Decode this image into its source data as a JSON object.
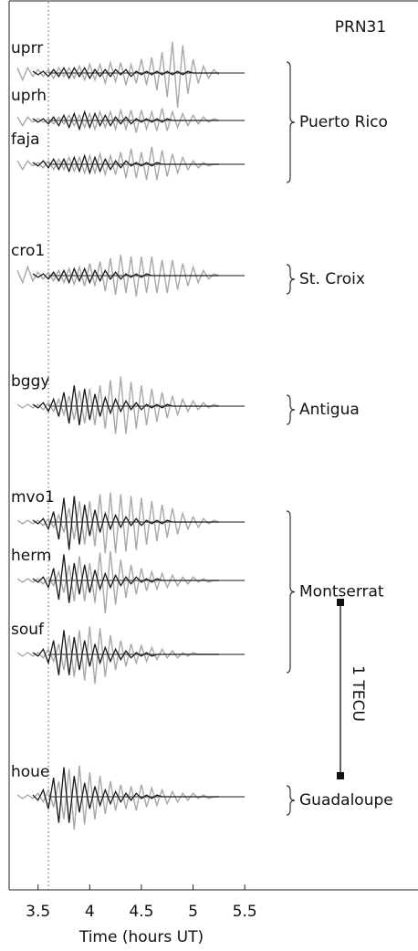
{
  "chart_data": {
    "type": "waveform",
    "title": "PRN31",
    "x_label": "Time (hours UT)",
    "xlim": [
      3.22,
      7.15
    ],
    "xticks": [
      3.5,
      4,
      4.5,
      5,
      5.5
    ],
    "reference_x": 3.6,
    "scale_bar": {
      "value": 1,
      "label": "1 TECU"
    },
    "x": [
      3.3,
      3.35,
      3.4,
      3.45,
      3.5,
      3.55,
      3.6,
      3.65,
      3.7,
      3.75,
      3.8,
      3.85,
      3.9,
      3.95,
      4,
      4.05,
      4.1,
      4.15,
      4.2,
      4.25,
      4.3,
      4.35,
      4.4,
      4.45,
      4.5,
      4.55,
      4.6,
      4.65,
      4.7,
      4.75,
      4.8,
      4.85,
      4.9,
      4.95,
      5,
      5.05,
      5.1,
      5.15,
      5.2,
      5.25
    ],
    "series": [
      {
        "name": "uprr",
        "group": "Puerto Rico",
        "traces": [
          {
            "color": "#a8a8a8",
            "values": [
              0.03,
              -0.04,
              0.03,
              -0.02,
              0.02,
              -0.02,
              0.02,
              -0.03,
              0.03,
              -0.02,
              0.03,
              -0.03,
              0.04,
              -0.04,
              0.05,
              -0.04,
              0.05,
              -0.06,
              0.06,
              -0.05,
              0.06,
              -0.07,
              0.05,
              -0.06,
              0.08,
              -0.07,
              0.09,
              -0.1,
              0.12,
              -0.14,
              0.18,
              -0.2,
              0.16,
              -0.12,
              0.08,
              -0.06,
              0.04,
              -0.03,
              0.02,
              -0.01
            ]
          },
          {
            "color": "#1a1a1a",
            "values": [
              null,
              null,
              null,
              0.01,
              -0.01,
              0.01,
              -0.02,
              0.02,
              -0.02,
              0.03,
              -0.03,
              0.03,
              -0.02,
              0.03,
              -0.03,
              0.02,
              -0.02,
              0.02,
              -0.02,
              0.02,
              -0.01,
              0.02,
              -0.02,
              0.01,
              -0.01,
              0.01,
              -0.01,
              0.01,
              -0.01,
              0.01,
              -0.01,
              0.01,
              -0.01,
              0.01,
              0,
              0,
              0,
              0,
              0,
              0
            ]
          }
        ]
      },
      {
        "name": "uprh",
        "group": "Puerto Rico",
        "traces": [
          {
            "color": "#a8a8a8",
            "values": [
              0.02,
              -0.03,
              0.02,
              -0.01,
              0.01,
              -0.01,
              0.01,
              -0.02,
              0.02,
              -0.02,
              0.03,
              -0.03,
              0.03,
              -0.04,
              0.04,
              -0.05,
              0.05,
              -0.04,
              0.05,
              -0.05,
              0.06,
              -0.05,
              0.06,
              -0.07,
              0.06,
              -0.05,
              0.05,
              -0.06,
              0.07,
              -0.06,
              0.05,
              -0.04,
              0.04,
              -0.03,
              0.03,
              -0.02,
              0.02,
              -0.01,
              0.01,
              0
            ]
          },
          {
            "color": "#1a1a1a",
            "values": [
              null,
              null,
              null,
              0.01,
              -0.01,
              0.01,
              -0.02,
              0.02,
              -0.03,
              0.03,
              -0.04,
              0.04,
              -0.05,
              0.05,
              -0.04,
              0.04,
              -0.03,
              0.03,
              -0.03,
              0.02,
              -0.02,
              0.02,
              -0.02,
              0.01,
              -0.01,
              0.01,
              -0.01,
              0.01,
              -0.01,
              0.01,
              0,
              0,
              0,
              0,
              0,
              0,
              0,
              0,
              0,
              0
            ]
          }
        ]
      },
      {
        "name": "faja",
        "group": "Puerto Rico",
        "traces": [
          {
            "color": "#a8a8a8",
            "values": [
              0.02,
              -0.03,
              0.02,
              -0.01,
              0.01,
              -0.02,
              0.02,
              -0.03,
              0.03,
              -0.03,
              0.04,
              -0.04,
              0.04,
              -0.05,
              0.05,
              -0.05,
              0.06,
              -0.06,
              0.05,
              -0.06,
              0.07,
              -0.08,
              0.09,
              -0.08,
              0.07,
              -0.09,
              0.1,
              -0.09,
              0.08,
              -0.07,
              0.06,
              -0.05,
              0.04,
              -0.03,
              0.02,
              -0.02,
              0.01,
              -0.01,
              0,
              0
            ]
          },
          {
            "color": "#1a1a1a",
            "values": [
              null,
              null,
              null,
              0.01,
              -0.01,
              0.02,
              -0.02,
              0.03,
              -0.03,
              0.03,
              -0.04,
              0.04,
              -0.04,
              0.05,
              -0.05,
              0.04,
              -0.04,
              0.03,
              -0.03,
              0.02,
              -0.02,
              0.02,
              -0.01,
              0.01,
              -0.01,
              0.01,
              -0.01,
              0.01,
              0,
              0,
              0,
              0,
              0,
              0,
              0,
              0,
              0,
              0,
              0,
              0
            ]
          }
        ]
      },
      {
        "name": "cro1",
        "group": "St. Croix",
        "traces": [
          {
            "color": "#a8a8a8",
            "values": [
              0.03,
              -0.04,
              0.05,
              -0.03,
              0.02,
              -0.02,
              0.02,
              -0.03,
              0.03,
              -0.04,
              0.04,
              -0.05,
              0.05,
              -0.06,
              0.07,
              -0.06,
              0.08,
              -0.09,
              0.1,
              -0.11,
              0.12,
              -0.1,
              0.11,
              -0.12,
              0.11,
              -0.1,
              0.11,
              -0.1,
              0.09,
              -0.1,
              0.09,
              -0.08,
              0.07,
              -0.06,
              0.05,
              -0.04,
              0.03,
              -0.02,
              0.01,
              0
            ]
          },
          {
            "color": "#1a1a1a",
            "values": [
              null,
              null,
              null,
              0.01,
              -0.01,
              0.01,
              -0.02,
              0.02,
              -0.03,
              0.03,
              -0.04,
              0.04,
              -0.03,
              0.04,
              -0.04,
              0.03,
              -0.03,
              0.03,
              -0.02,
              0.02,
              -0.02,
              0.01,
              -0.01,
              0.01,
              -0.01,
              0.01,
              0,
              0,
              0,
              0,
              0,
              0,
              0,
              0,
              0,
              0,
              0,
              0,
              0,
              0
            ]
          }
        ]
      },
      {
        "name": "bggy",
        "group": "Antigua",
        "traces": [
          {
            "color": "#a8a8a8",
            "values": [
              0.01,
              -0.01,
              0.01,
              -0.01,
              0.01,
              -0.02,
              0.02,
              -0.03,
              0.04,
              -0.05,
              0.06,
              -0.08,
              0.09,
              -0.1,
              0.1,
              -0.11,
              0.12,
              -0.13,
              0.15,
              -0.16,
              0.17,
              -0.16,
              0.14,
              -0.13,
              0.12,
              -0.11,
              0.1,
              -0.09,
              0.08,
              -0.07,
              0.06,
              -0.05,
              0.04,
              -0.03,
              0.03,
              -0.02,
              0.02,
              -0.01,
              0.01,
              0
            ]
          },
          {
            "color": "#1a1a1a",
            "values": [
              null,
              null,
              null,
              0.01,
              -0.01,
              0.02,
              -0.03,
              0.04,
              -0.06,
              0.08,
              -0.1,
              0.12,
              -0.11,
              0.1,
              -0.08,
              0.07,
              -0.06,
              0.05,
              -0.04,
              0.04,
              -0.03,
              0.03,
              -0.02,
              0.02,
              -0.02,
              0.01,
              -0.01,
              0.01,
              -0.01,
              0.01,
              0,
              0,
              0,
              0,
              0,
              0,
              0,
              0,
              0,
              0
            ]
          }
        ]
      },
      {
        "name": "mvo1",
        "group": "Montserrat",
        "traces": [
          {
            "color": "#a8a8a8",
            "values": [
              0.01,
              -0.01,
              0.01,
              -0.01,
              0.01,
              -0.02,
              0.02,
              -0.03,
              0.04,
              -0.06,
              0.08,
              -0.1,
              0.12,
              -0.13,
              0.12,
              -0.14,
              0.16,
              -0.18,
              0.17,
              -0.18,
              0.16,
              -0.17,
              0.15,
              -0.16,
              0.14,
              -0.13,
              0.12,
              -0.11,
              0.1,
              -0.09,
              0.08,
              -0.07,
              0.05,
              -0.04,
              0.03,
              -0.03,
              0.02,
              -0.01,
              0.01,
              0
            ]
          },
          {
            "color": "#1a1a1a",
            "values": [
              null,
              null,
              null,
              0.01,
              -0.01,
              0.02,
              -0.04,
              0.06,
              -0.1,
              0.14,
              -0.16,
              0.15,
              -0.13,
              0.1,
              -0.08,
              0.07,
              -0.06,
              0.05,
              -0.04,
              0.04,
              -0.03,
              0.03,
              -0.02,
              0.02,
              -0.02,
              0.01,
              -0.01,
              0.01,
              -0.01,
              0.01,
              0,
              0,
              0,
              0,
              0,
              0,
              0,
              0,
              0,
              0
            ]
          }
        ]
      },
      {
        "name": "herm",
        "group": "Montserrat",
        "traces": [
          {
            "color": "#a8a8a8",
            "values": [
              0.01,
              -0.01,
              0.01,
              -0.01,
              0.01,
              -0.02,
              0.02,
              -0.03,
              0.05,
              -0.07,
              0.09,
              -0.12,
              0.14,
              -0.12,
              0.1,
              -0.13,
              0.16,
              -0.19,
              0.17,
              -0.14,
              0.12,
              -0.1,
              0.09,
              -0.08,
              0.07,
              -0.06,
              0.05,
              -0.05,
              0.04,
              -0.04,
              0.03,
              -0.03,
              0.02,
              -0.02,
              0.02,
              -0.01,
              0.01,
              -0.01,
              0,
              0
            ]
          },
          {
            "color": "#1a1a1a",
            "values": [
              null,
              null,
              null,
              0.01,
              -0.01,
              0.02,
              -0.04,
              0.07,
              -0.11,
              0.15,
              -0.13,
              0.1,
              -0.08,
              0.09,
              -0.07,
              0.06,
              -0.05,
              0.04,
              -0.04,
              0.03,
              -0.03,
              0.02,
              -0.02,
              0.02,
              -0.01,
              0.01,
              -0.01,
              0.01,
              0,
              0,
              0,
              0,
              0,
              0,
              0,
              0,
              0,
              0,
              0,
              0
            ]
          }
        ]
      },
      {
        "name": "souf",
        "group": "Montserrat",
        "traces": [
          {
            "color": "#a8a8a8",
            "values": [
              0.01,
              -0.01,
              0.01,
              -0.01,
              0.01,
              -0.02,
              0.03,
              -0.04,
              0.06,
              -0.09,
              0.11,
              -0.13,
              0.14,
              -0.15,
              0.16,
              -0.17,
              0.15,
              -0.13,
              0.11,
              -0.09,
              0.08,
              -0.07,
              0.06,
              -0.05,
              0.05,
              -0.04,
              0.04,
              -0.03,
              0.03,
              -0.02,
              0.02,
              -0.02,
              0.01,
              -0.01,
              0.01,
              0,
              0,
              0,
              0,
              0
            ]
          },
          {
            "color": "#1a1a1a",
            "values": [
              null,
              null,
              null,
              0.01,
              -0.01,
              0.03,
              -0.05,
              0.08,
              -0.12,
              0.14,
              -0.12,
              0.1,
              -0.09,
              0.08,
              -0.07,
              0.06,
              -0.05,
              0.04,
              -0.04,
              0.03,
              -0.03,
              0.02,
              -0.02,
              0.01,
              -0.01,
              0.01,
              -0.01,
              0,
              0,
              0,
              0,
              0,
              0,
              0,
              0,
              0,
              0,
              0,
              0,
              0
            ]
          }
        ]
      },
      {
        "name": "houe",
        "group": "Guadaloupe",
        "traces": [
          {
            "color": "#a8a8a8",
            "values": [
              0.01,
              -0.01,
              0.01,
              -0.01,
              0.02,
              -0.03,
              0.04,
              -0.06,
              0.09,
              -0.13,
              0.16,
              -0.19,
              0.18,
              -0.16,
              0.14,
              -0.13,
              0.12,
              -0.1,
              0.09,
              -0.08,
              0.07,
              -0.07,
              0.06,
              -0.08,
              0.07,
              -0.06,
              0.05,
              -0.05,
              0.04,
              -0.04,
              0.03,
              -0.03,
              0.02,
              -0.02,
              0.02,
              -0.01,
              0.01,
              -0.01,
              0,
              0
            ]
          },
          {
            "color": "#1a1a1a",
            "values": [
              null,
              null,
              null,
              0.01,
              -0.02,
              0.04,
              -0.07,
              0.11,
              -0.15,
              0.17,
              -0.15,
              0.12,
              -0.09,
              0.08,
              -0.07,
              0.06,
              -0.05,
              0.04,
              -0.04,
              0.03,
              -0.03,
              0.02,
              -0.02,
              0.02,
              -0.01,
              0.01,
              -0.01,
              0.01,
              0,
              0,
              0,
              0,
              0,
              0,
              0,
              0,
              0,
              0,
              0,
              0
            ]
          }
        ]
      }
    ]
  }
}
